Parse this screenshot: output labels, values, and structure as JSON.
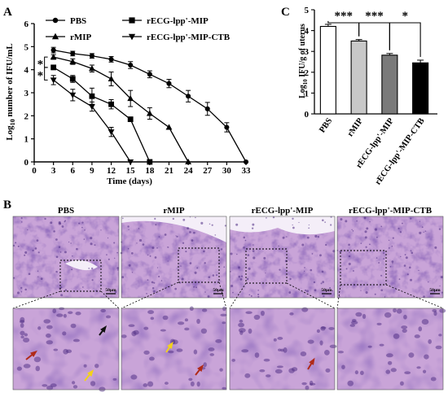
{
  "panels": {
    "A": {
      "letter": "A"
    },
    "B": {
      "letter": "B"
    },
    "C": {
      "letter": "C"
    }
  },
  "histology": {
    "groups": [
      "PBS",
      "rMIP",
      "rECG-lpp'-MIP",
      "rECG-lpp'-MIP-CTB"
    ],
    "scale_bars": [
      "50μm",
      "50μm",
      "50μm",
      "50μm"
    ],
    "stain_colors": {
      "base": "#c9a4d8",
      "tissue": "#9a5fb7",
      "nuclei": "#4b2a82",
      "lumen": "#f4eef8"
    },
    "arrow_colors": {
      "red": "#b02a18",
      "yellow": "#f3d21a",
      "black": "#111111"
    }
  },
  "chart_data": [
    {
      "type": "line",
      "ylabel_main": "Log",
      "ylabel_sub": "10",
      "ylabel_rest": " number of IFU/mL",
      "xlabel": "Time (days)",
      "xlim": [
        0,
        33
      ],
      "ylim": [
        0,
        6
      ],
      "xticks": [
        0,
        3,
        6,
        9,
        12,
        15,
        18,
        21,
        24,
        27,
        30,
        33
      ],
      "yticks": [
        0,
        1,
        2,
        3,
        4,
        5,
        6
      ],
      "significance": [
        "*",
        "*"
      ],
      "series": [
        {
          "name": "PBS",
          "marker": "circle",
          "x": [
            3,
            6,
            9,
            12,
            15,
            18,
            21,
            24,
            27,
            30,
            33
          ],
          "y": [
            4.85,
            4.7,
            4.6,
            4.45,
            4.2,
            3.8,
            3.4,
            2.85,
            2.3,
            1.5,
            0
          ],
          "err": [
            0.12,
            0.1,
            0.1,
            0.12,
            0.15,
            0.15,
            0.18,
            0.25,
            0.28,
            0.2,
            0
          ]
        },
        {
          "name": "rMIP",
          "marker": "triangle",
          "x": [
            3,
            6,
            9,
            12,
            15,
            18,
            21,
            24
          ],
          "y": [
            4.55,
            4.35,
            4.05,
            3.6,
            2.75,
            2.1,
            1.5,
            0
          ],
          "err": [
            0.1,
            0.12,
            0.15,
            0.3,
            0.35,
            0.25,
            0,
            0
          ]
        },
        {
          "name": "rECG-lpp'-MIP",
          "marker": "square",
          "x": [
            3,
            6,
            9,
            12,
            15,
            18
          ],
          "y": [
            4.1,
            3.6,
            2.85,
            2.5,
            1.85,
            0
          ],
          "err": [
            0.1,
            0.15,
            0.35,
            0.2,
            0,
            0
          ]
        },
        {
          "name": "rECG-lpp'-MIP-CTB",
          "marker": "triangle-down",
          "x": [
            3,
            6,
            9,
            12,
            15
          ],
          "y": [
            3.55,
            2.9,
            2.4,
            1.3,
            0
          ],
          "err": [
            0.2,
            0.25,
            0.2,
            0.2,
            0
          ]
        }
      ]
    },
    {
      "type": "bar",
      "ylabel_main": "Log",
      "ylabel_sub": "10",
      "ylabel_rest": " IFU/g of uterus",
      "ylim": [
        0,
        5
      ],
      "yticks": [
        0,
        1,
        2,
        3,
        4,
        5
      ],
      "categories": [
        "PBS",
        "rMIP",
        "rECG-lpp'-MIP",
        "rECG-lpp'-MIP-CTB"
      ],
      "values": [
        4.2,
        3.5,
        2.82,
        2.45
      ],
      "errors": [
        0.1,
        0.07,
        0.08,
        0.13
      ],
      "colors": [
        "#ffffff",
        "#c8c8c8",
        "#7a7a7a",
        "#000000"
      ],
      "significance": [
        {
          "from": 0,
          "to": 1,
          "label": "***"
        },
        {
          "from": 1,
          "to": 2,
          "label": "***"
        },
        {
          "from": 2,
          "to": 3,
          "label": "*"
        }
      ]
    }
  ]
}
